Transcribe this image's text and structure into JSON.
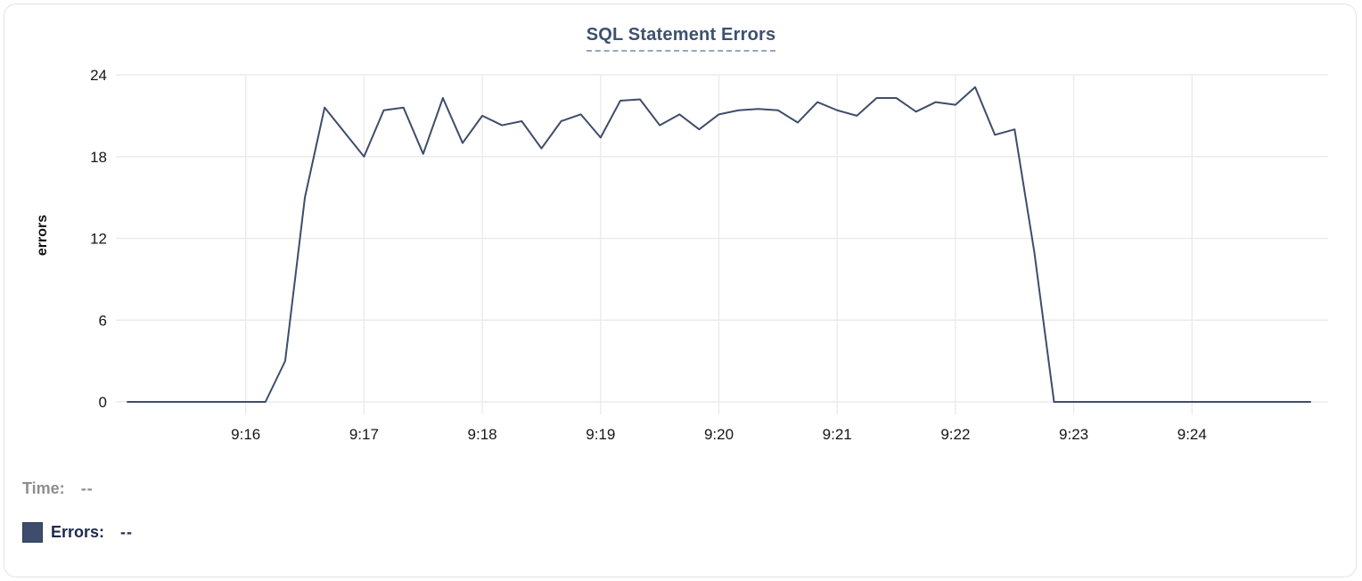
{
  "chart_data": {
    "type": "line",
    "title": "SQL Statement Errors",
    "xlabel": "",
    "ylabel": "errors",
    "ylim": [
      0,
      24
    ],
    "y_ticks": [
      0,
      6,
      12,
      18,
      24
    ],
    "x_tick_labels": [
      "9:16",
      "9:17",
      "9:18",
      "9:19",
      "9:20",
      "9:21",
      "9:22",
      "9:23",
      "9:24"
    ],
    "x_range": [
      "9:15:00",
      "9:25:00"
    ],
    "grid": true,
    "legend_position": "bottom-left",
    "series": [
      {
        "name": "Errors",
        "color": "#3e4d6b",
        "start_time": "9:15:00",
        "interval_seconds": 10,
        "values": [
          0,
          0,
          0,
          0,
          0,
          0,
          0,
          0,
          3,
          15,
          21.6,
          19.8,
          18,
          21.4,
          21.6,
          18.2,
          22.3,
          19,
          21,
          20.3,
          20.6,
          18.6,
          20.6,
          21.1,
          19.4,
          22.1,
          22.2,
          20.3,
          21.1,
          20,
          21.1,
          21.4,
          21.5,
          21.4,
          20.5,
          22,
          21.4,
          21,
          22.3,
          22.3,
          21.3,
          22,
          21.8,
          23.1,
          19.6,
          20,
          11,
          0,
          0,
          0,
          0,
          0,
          0,
          0,
          0,
          0,
          0,
          0,
          0,
          0,
          0
        ]
      }
    ]
  },
  "readout": {
    "time_label": "Time:",
    "time_value": "--",
    "errors_label": "Errors:",
    "errors_value": "--"
  },
  "colors": {
    "line": "#3e4d6b",
    "swatch": "#3e4d6b",
    "title": "#3d5170",
    "title_underline": "#97a5c0",
    "grid": "#ebebeb",
    "tick_text": "#161616",
    "time_gray": "#8e8e8e",
    "errors_navy": "#1d2a4e",
    "card_border": "#e2e2e2"
  }
}
